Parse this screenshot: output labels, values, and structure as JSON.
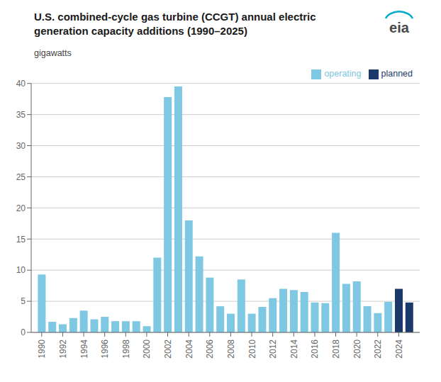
{
  "chart_data": {
    "type": "bar",
    "title": "U.S. combined-cycle gas turbine (CCGT) annual electric",
    "subtitle": "generation capacity additions (1990–2025)",
    "ylabel": "gigawatts",
    "annotations": [
      "eia"
    ],
    "x": [
      1990,
      1991,
      1992,
      1993,
      1994,
      1995,
      1996,
      1997,
      1998,
      1999,
      2000,
      2001,
      2002,
      2003,
      2004,
      2005,
      2006,
      2007,
      2008,
      2009,
      2010,
      2011,
      2012,
      2013,
      2014,
      2015,
      2016,
      2017,
      2018,
      2019,
      2020,
      2021,
      2022,
      2023,
      2024,
      2025
    ],
    "series": [
      {
        "name": "operating",
        "color": "#7EC8E3",
        "values": [
          9.3,
          1.7,
          1.3,
          2.3,
          3.5,
          2.1,
          2.5,
          1.8,
          1.8,
          1.8,
          1.0,
          12.0,
          37.8,
          39.5,
          18.0,
          12.2,
          8.8,
          4.2,
          3.0,
          8.5,
          3.0,
          4.1,
          5.5,
          7.0,
          6.8,
          6.5,
          4.8,
          4.7,
          16.0,
          7.8,
          8.2,
          4.2,
          3.1,
          4.9,
          0.2,
          0.0
        ]
      },
      {
        "name": "planned",
        "color": "#1B3A6B",
        "values": [
          0,
          0,
          0,
          0,
          0,
          0,
          0,
          0,
          0,
          0,
          0,
          0,
          0,
          0,
          0,
          0,
          0,
          0,
          0,
          0,
          0,
          0,
          0,
          0,
          0,
          0,
          0,
          0,
          0,
          0,
          0,
          0,
          0,
          0,
          7.0,
          4.8
        ]
      }
    ],
    "xlim": [
      1989,
      2026
    ],
    "xticks": [
      1990,
      1992,
      1994,
      1996,
      1998,
      2000,
      2002,
      2004,
      2006,
      2008,
      2010,
      2012,
      2014,
      2016,
      2018,
      2020,
      2022,
      2024
    ],
    "ylim": [
      0,
      40
    ],
    "yticks": [
      0,
      5,
      10,
      15,
      20,
      25,
      30,
      35,
      40
    ],
    "grid": true,
    "legend": "upper right"
  }
}
